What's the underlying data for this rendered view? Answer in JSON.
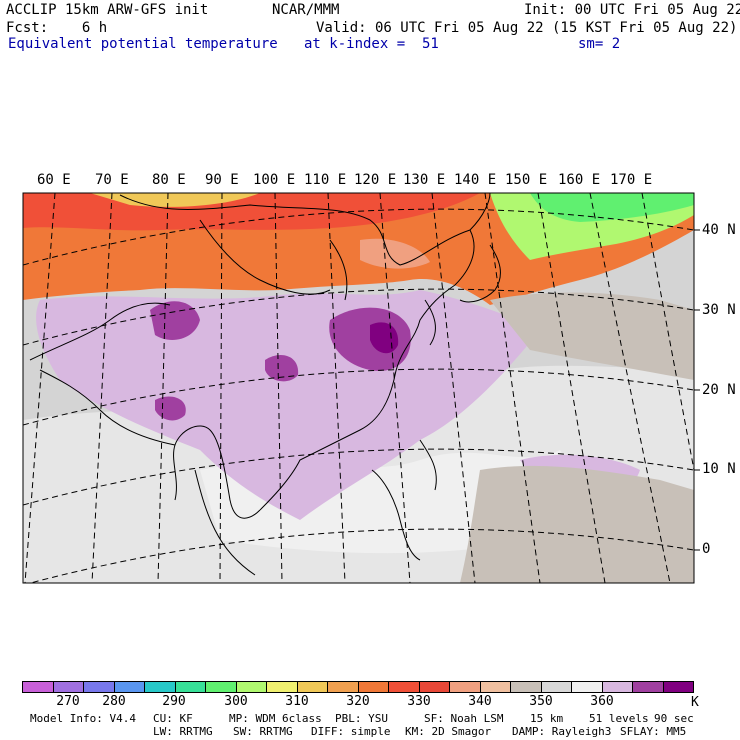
{
  "header": {
    "model": "ACCLIP 15km ARW-GFS init",
    "org": "NCAR/MMM",
    "init": "Init: 00 UTC Fri 05 Aug 22",
    "fcst": "Fcst:    6 h",
    "valid": "Valid: 06 UTC Fri 05 Aug 22 (15 KST Fri 05 Aug 22)",
    "field": "Equivalent potential temperature",
    "level": "at k-index =  51",
    "smooth": "sm= 2"
  },
  "map": {
    "longitude_labels": [
      "60 E",
      "70 E",
      "80 E",
      "90 E",
      "100 E",
      "110 E",
      "120 E",
      "130 E",
      "140 E",
      "150 E",
      "160 E",
      "170 E"
    ],
    "latitude_labels": [
      "40 N",
      "30 N",
      "20 N",
      "10 N",
      "0"
    ]
  },
  "legend": {
    "colors": [
      "#c860d8",
      "#a070e0",
      "#7878ec",
      "#5a96f0",
      "#28c8c8",
      "#38e098",
      "#60f070",
      "#b0f870",
      "#f0f070",
      "#f0c858",
      "#f0a050",
      "#f07838",
      "#f05038",
      "#e84838",
      "#f0a080",
      "#f0c0a0",
      "#c8c0b8",
      "#d8d8d8",
      "#f0f0f0",
      "#d8b8e0",
      "#a040a0",
      "#800080"
    ],
    "ticks": [
      "270",
      "280",
      "290",
      "300",
      "310",
      "320",
      "330",
      "340",
      "350",
      "360"
    ],
    "unit": "K"
  },
  "footer": {
    "line1": [
      "Model Info: V4.4",
      "CU: KF",
      "MP: WDM 6class",
      "PBL: YSU",
      "SF: Noah LSM",
      "15 km",
      "51 levels",
      "90 sec"
    ],
    "line2": [
      "LW: RRTMG",
      "SW: RRTMG",
      "DIFF: simple",
      "KM: 2D Smagor",
      "DAMP: Rayleigh3",
      "SFLAY: MM5"
    ]
  }
}
